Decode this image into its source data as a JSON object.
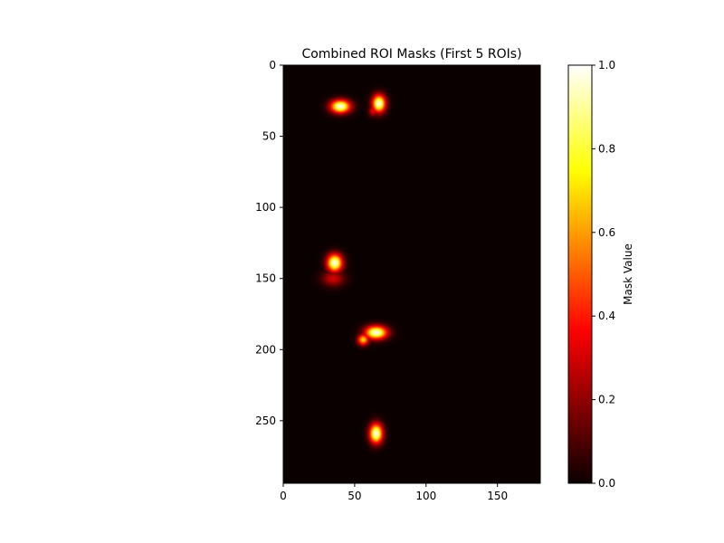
{
  "chart_data": {
    "type": "heatmap",
    "title": "Combined ROI Masks (First 5 ROIs)",
    "colormap": "hot",
    "background_color": "#0b0000",
    "x_extent": [
      0,
      180
    ],
    "y_extent": [
      0,
      294
    ],
    "y_inverted": true,
    "x_ticks": [
      "0",
      "50",
      "100",
      "150"
    ],
    "x_tick_values": [
      0,
      50,
      100,
      150
    ],
    "y_ticks": [
      "0",
      "50",
      "100",
      "150",
      "200",
      "250"
    ],
    "y_tick_values": [
      0,
      50,
      100,
      150,
      200,
      250
    ],
    "colorbar": {
      "label": "Mask Value",
      "range": [
        0,
        1
      ],
      "ticks": [
        "0.0",
        "0.2",
        "0.4",
        "0.6",
        "0.8",
        "1.0"
      ],
      "tick_values": [
        0,
        0.2,
        0.4,
        0.6,
        0.8,
        1.0
      ]
    },
    "blobs": [
      {
        "x": 40,
        "y": 29,
        "sx": 4.5,
        "sy": 3.0,
        "peak": 1.0
      },
      {
        "x": 67,
        "y": 27,
        "sx": 3.0,
        "sy": 4.0,
        "peak": 1.0
      },
      {
        "x": 63,
        "y": 32,
        "sx": 2.0,
        "sy": 2.5,
        "peak": 0.35
      },
      {
        "x": 36,
        "y": 139,
        "sx": 3.5,
        "sy": 4.0,
        "peak": 1.0
      },
      {
        "x": 35,
        "y": 150,
        "sx": 5.0,
        "sy": 3.5,
        "peak": 0.3
      },
      {
        "x": 65,
        "y": 188,
        "sx": 5.0,
        "sy": 3.0,
        "peak": 1.0
      },
      {
        "x": 56,
        "y": 193,
        "sx": 2.5,
        "sy": 2.5,
        "peak": 0.7
      },
      {
        "x": 65,
        "y": 259,
        "sx": 3.0,
        "sy": 4.5,
        "peak": 1.0
      }
    ]
  }
}
